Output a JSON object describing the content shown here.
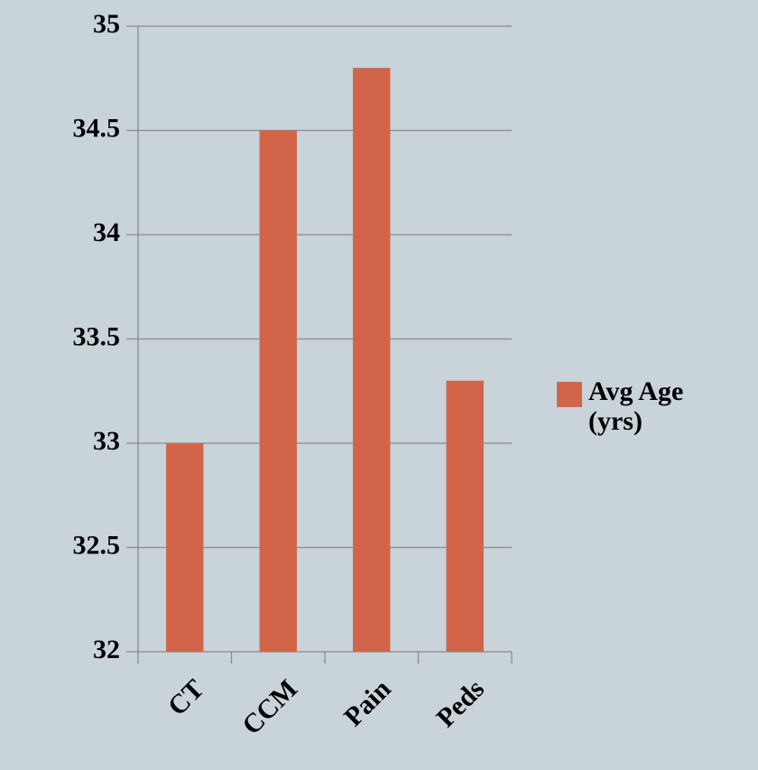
{
  "chart_data": {
    "type": "bar",
    "categories": [
      "CT",
      "CCM",
      "Pain",
      "Peds"
    ],
    "series": [
      {
        "name": "Avg Age (yrs)",
        "color": "#d2644a",
        "values": [
          33,
          34.5,
          34.8,
          33.3
        ]
      }
    ],
    "ylim": [
      32,
      35
    ],
    "yticks": [
      32,
      32.5,
      33,
      33.5,
      34,
      34.5,
      35
    ],
    "grid": true,
    "legend": "right"
  }
}
